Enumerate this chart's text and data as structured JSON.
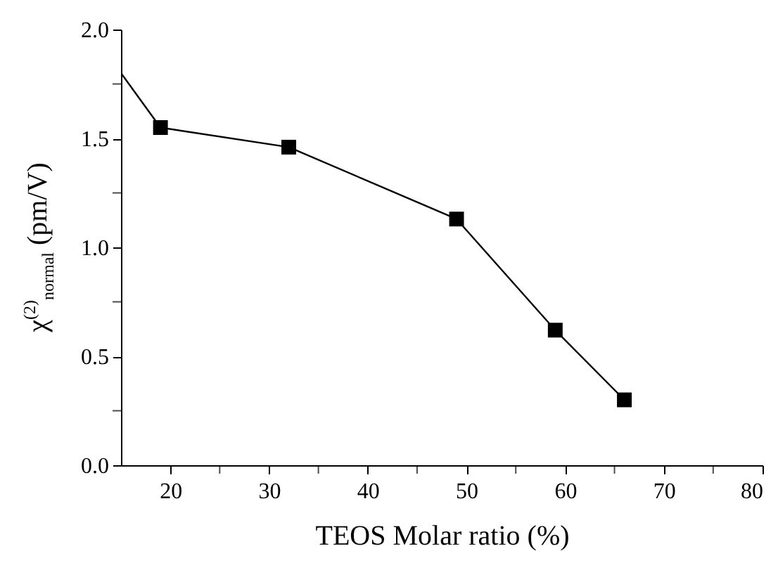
{
  "chart_data": {
    "type": "line",
    "xlabel": "TEOS Molar ratio (%)",
    "ylabel": "χ$^{(2)}$$_{normal}$ (pm/V)",
    "xlim": [
      15,
      80
    ],
    "ylim": [
      0,
      2
    ],
    "xticks": [
      20,
      {
        "value": 25,
        "label": null
      },
      30,
      {
        "value": 35,
        "label": null
      },
      40,
      {
        "value": 45,
        "label": null
      },
      50,
      {
        "value": 55,
        "label": null
      },
      60,
      {
        "value": 65,
        "label": null
      },
      70,
      {
        "value": 75,
        "label": null
      },
      80
    ],
    "yticks": [
      {
        "value": 0,
        "label": "0.0"
      },
      {
        "value": 0.25,
        "label": null
      },
      {
        "value": 0.5,
        "label": "0.5"
      },
      {
        "value": 0.75,
        "label": null
      },
      {
        "value": 1,
        "label": "1.0"
      },
      {
        "value": 1.25,
        "label": null
      },
      {
        "value": 1.5,
        "label": "1.5"
      },
      {
        "value": 1.75,
        "label": null
      },
      {
        "value": 2,
        "label": "2.0"
      }
    ],
    "grid": false,
    "series": [
      {
        "color": "#000000",
        "x": [
          15,
          19,
          32,
          49,
          59,
          66
        ],
        "values": [
          1.8,
          1.55,
          1.46,
          1.13,
          0.62,
          0.3
        ]
      },
      {
        "type": "scatter",
        "marker": "square",
        "color": "#000000",
        "x": [
          19,
          32,
          49,
          59,
          66
        ],
        "values": [
          1.55,
          1.46,
          1.13,
          0.62,
          0.3
        ]
      }
    ]
  }
}
